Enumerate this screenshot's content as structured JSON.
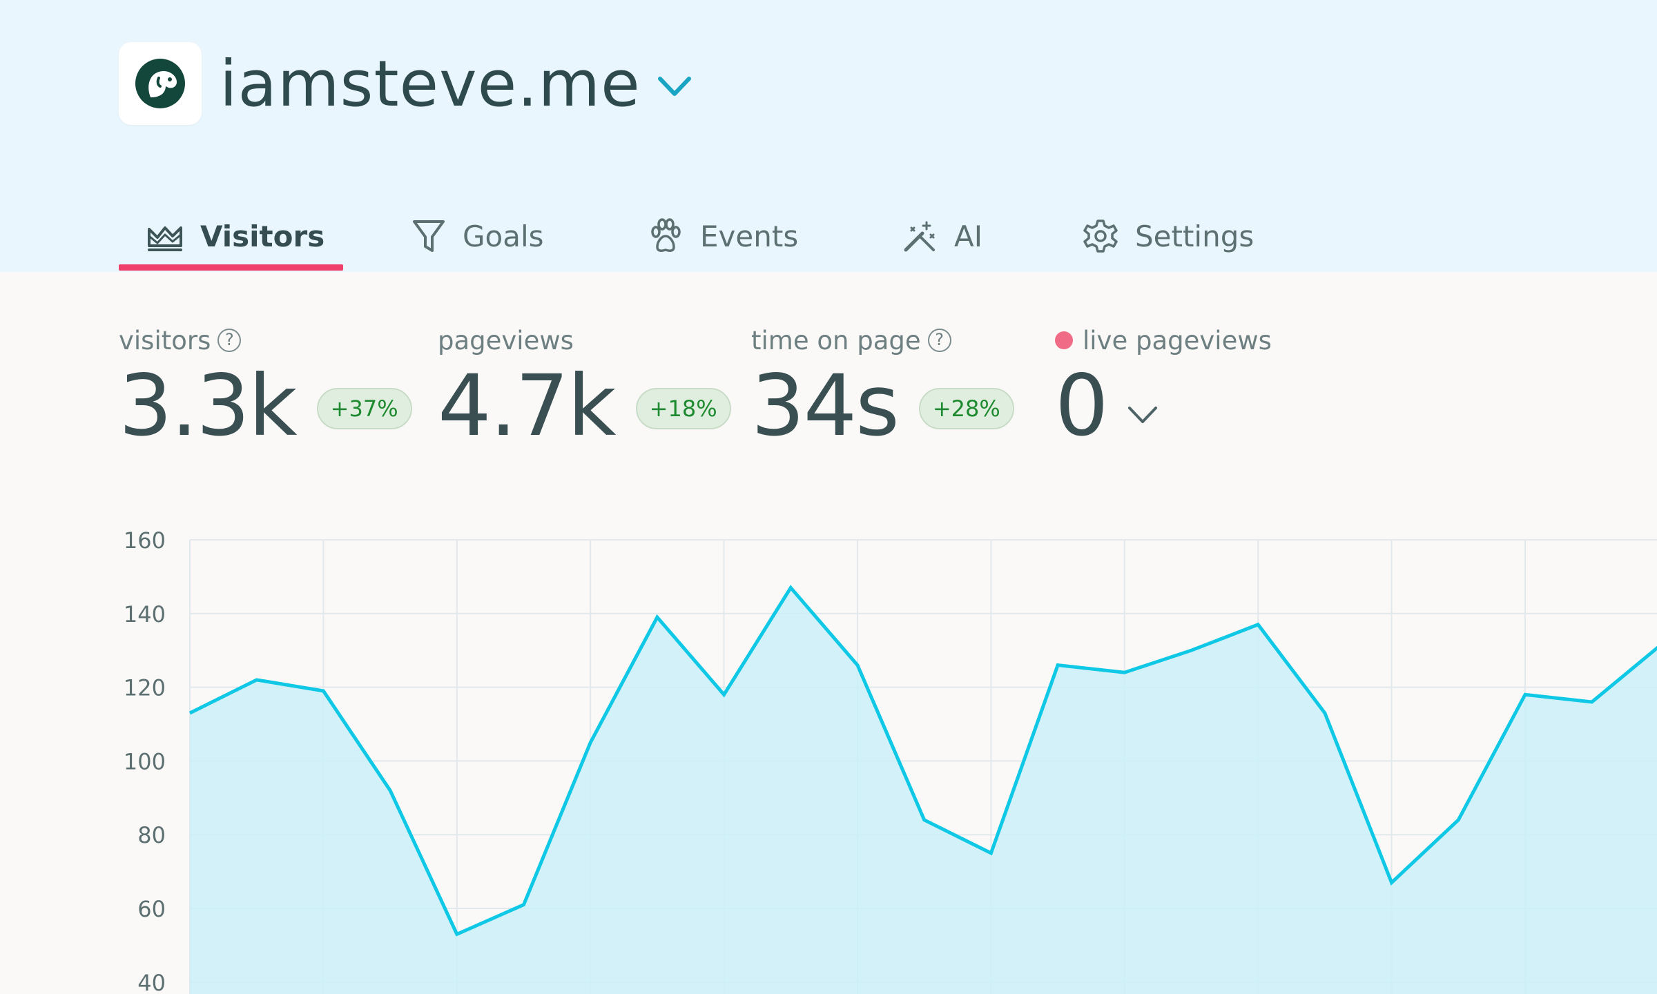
{
  "site": {
    "name": "iamsteve.me"
  },
  "tabs": [
    {
      "label": "Visitors",
      "icon": "chart-icon",
      "active": true
    },
    {
      "label": "Goals",
      "icon": "funnel-icon",
      "active": false
    },
    {
      "label": "Events",
      "icon": "paw-icon",
      "active": false
    },
    {
      "label": "AI",
      "icon": "magic-wand-icon",
      "active": false
    },
    {
      "label": "Settings",
      "icon": "gear-icon",
      "active": false
    }
  ],
  "metrics": {
    "visitors": {
      "label": "visitors",
      "value": "3.3k",
      "delta": "+37%"
    },
    "pageviews": {
      "label": "pageviews",
      "value": "4.7k",
      "delta": "+18%"
    },
    "time_on_page": {
      "label": "time on page",
      "value": "34s",
      "delta": "+28%"
    },
    "live": {
      "label": "live pageviews",
      "value": "0"
    }
  },
  "colors": {
    "accent": "#ef3f6a",
    "line": "#0ec8e6",
    "area": "#cdeff7",
    "delta_text": "#1e8a2f",
    "live_dot": "#f06b85"
  },
  "chart_data": {
    "type": "area",
    "y_ticks": [
      160,
      140,
      120,
      100,
      80,
      60,
      40
    ],
    "ylim": [
      40,
      160
    ],
    "grid": true,
    "values": [
      113,
      122,
      119,
      92,
      53,
      61,
      105,
      139,
      118,
      147,
      126,
      84,
      75,
      126,
      124,
      130,
      137,
      113,
      67,
      84,
      118,
      116,
      131
    ]
  }
}
